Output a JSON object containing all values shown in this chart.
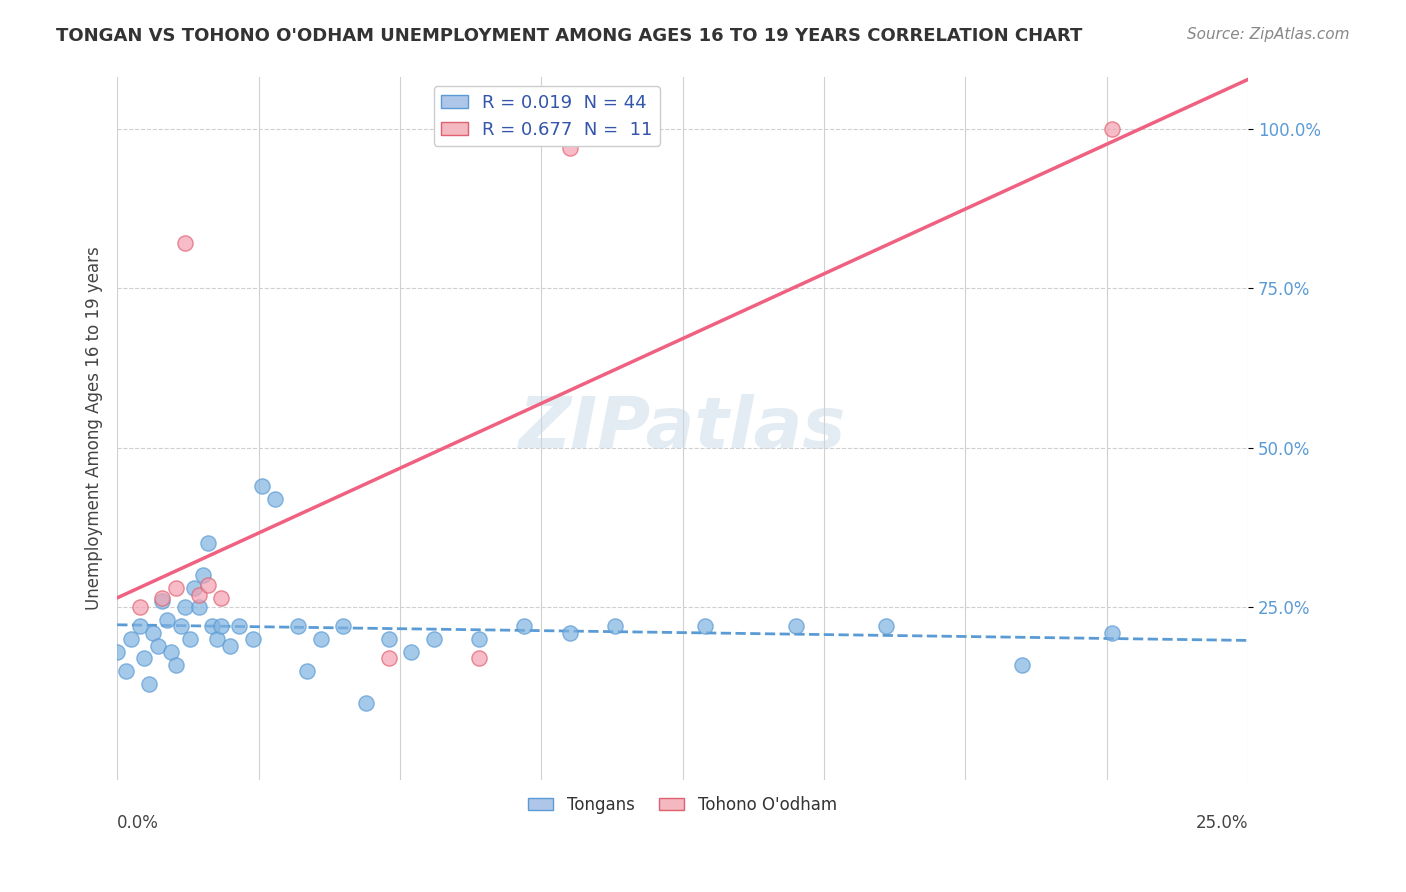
{
  "title": "TONGAN VS TOHONO O'ODHAM UNEMPLOYMENT AMONG AGES 16 TO 19 YEARS CORRELATION CHART",
  "source": "Source: ZipAtlas.com",
  "ylabel": "Unemployment Among Ages 16 to 19 years",
  "xmin": 0.0,
  "xmax": 0.25,
  "ymin": -0.02,
  "ymax": 1.08,
  "tonga_R": 0.019,
  "tonga_N": 44,
  "tohono_R": 0.677,
  "tohono_N": 11,
  "blue_color": "#7fb3e0",
  "pink_color": "#f4a0b0",
  "blue_line_color": "#5b9bd5",
  "pink_line_color": "#f06080",
  "grid_color": "#d0d0d0",
  "bg_color": "#ffffff",
  "tongans_x": [
    0.0,
    0.002,
    0.003,
    0.005,
    0.006,
    0.007,
    0.008,
    0.009,
    0.01,
    0.011,
    0.012,
    0.013,
    0.014,
    0.015,
    0.016,
    0.017,
    0.018,
    0.019,
    0.02,
    0.021,
    0.022,
    0.023,
    0.025,
    0.027,
    0.03,
    0.032,
    0.035,
    0.04,
    0.042,
    0.045,
    0.05,
    0.055,
    0.06,
    0.065,
    0.07,
    0.08,
    0.09,
    0.1,
    0.11,
    0.13,
    0.15,
    0.17,
    0.2,
    0.22
  ],
  "tongans_y": [
    0.18,
    0.15,
    0.2,
    0.22,
    0.17,
    0.13,
    0.21,
    0.19,
    0.26,
    0.23,
    0.18,
    0.16,
    0.22,
    0.25,
    0.2,
    0.28,
    0.25,
    0.3,
    0.35,
    0.22,
    0.2,
    0.22,
    0.19,
    0.22,
    0.2,
    0.44,
    0.42,
    0.22,
    0.15,
    0.2,
    0.22,
    0.1,
    0.2,
    0.18,
    0.2,
    0.2,
    0.22,
    0.21,
    0.22,
    0.22,
    0.22,
    0.22,
    0.16,
    0.21
  ],
  "tohono_x": [
    0.005,
    0.01,
    0.013,
    0.015,
    0.018,
    0.02,
    0.023,
    0.06,
    0.08,
    0.1,
    0.22
  ],
  "tohono_y": [
    0.25,
    0.265,
    0.28,
    0.82,
    0.27,
    0.285,
    0.265,
    0.17,
    0.17,
    0.97,
    1.0
  ]
}
